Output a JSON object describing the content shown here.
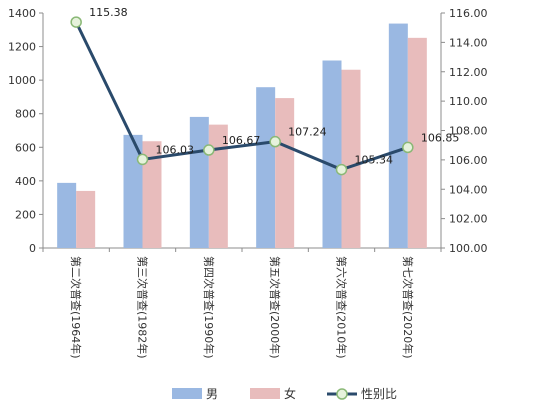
{
  "chart_data": {
    "type": "bar",
    "categories": [
      "第二次普查(1964年)",
      "第三次普查(1982年)",
      "第四次普查(1990年)",
      "第五次普查(2000年)",
      "第六次普查(2010年)",
      "第七次普查(2020年)"
    ],
    "series": [
      {
        "name": "男",
        "type": "bar",
        "axis": "left",
        "color": "#9ab8e2",
        "values": [
          388,
          674,
          781,
          958,
          1117,
          1337
        ]
      },
      {
        "name": "女",
        "type": "bar",
        "axis": "left",
        "color": "#e8bcbc",
        "values": [
          340,
          636,
          735,
          893,
          1062,
          1252
        ]
      },
      {
        "name": "性别比",
        "type": "line",
        "axis": "right",
        "color": "#2a4a6b",
        "values": [
          115.38,
          106.03,
          106.67,
          107.24,
          105.34,
          106.85
        ]
      }
    ],
    "data_labels": [
      "115.38",
      "106.03",
      "106.67",
      "107.24",
      "105.34",
      "106.85"
    ],
    "ylim_left": [
      0,
      1400
    ],
    "yticks_left": [
      "0",
      "200",
      "400",
      "600",
      "800",
      "1000",
      "1200",
      "1400"
    ],
    "ylim_right": [
      100,
      116
    ],
    "yticks_right": [
      "100.00",
      "102.00",
      "104.00",
      "106.00",
      "108.00",
      "110.00",
      "112.00",
      "114.00",
      "116.00"
    ],
    "legend_position": "bottom",
    "grid": false
  }
}
